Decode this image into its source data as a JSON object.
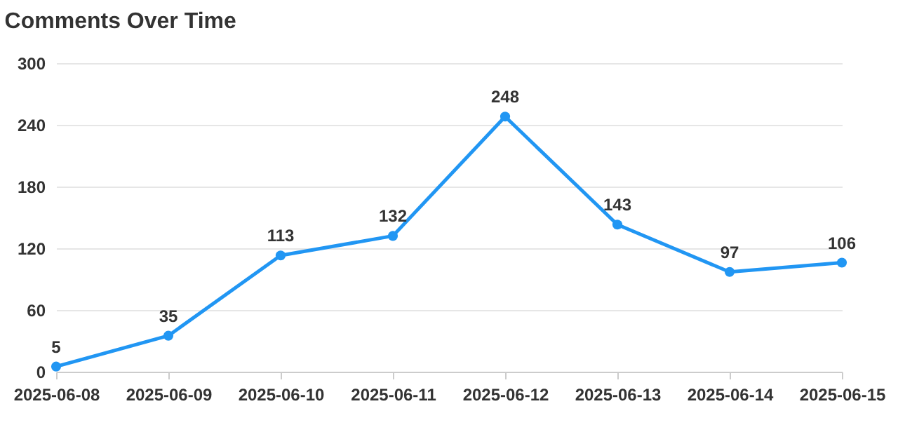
{
  "chart_data": {
    "type": "line",
    "title": "Comments Over Time",
    "categories": [
      "2025-06-08",
      "2025-06-09",
      "2025-06-10",
      "2025-06-11",
      "2025-06-12",
      "2025-06-13",
      "2025-06-14",
      "2025-06-15"
    ],
    "series": [
      {
        "color": "#2196f3",
        "values": [
          5,
          35,
          113,
          132,
          248,
          143,
          97,
          106
        ]
      }
    ],
    "ylim": [
      0,
      300
    ],
    "yticks": [
      0,
      60,
      120,
      180,
      240,
      300
    ],
    "grid": "y",
    "marker": "circle",
    "data_labels": true,
    "legend": false
  }
}
